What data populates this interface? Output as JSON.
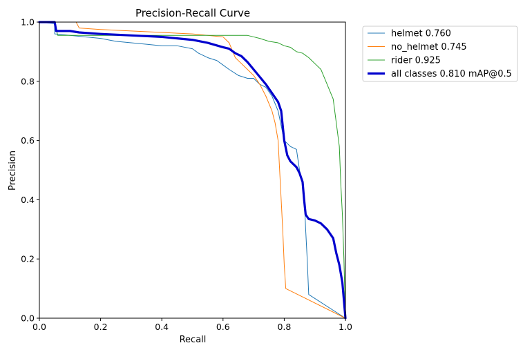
{
  "chart_data": {
    "type": "line",
    "title": "Precision-Recall Curve",
    "xlabel": "Recall",
    "ylabel": "Precision",
    "xlim": [
      0,
      1
    ],
    "ylim": [
      0,
      1
    ],
    "x_ticks": [
      "0.0",
      "0.2",
      "0.4",
      "0.6",
      "0.8",
      "1.0"
    ],
    "y_ticks": [
      "0.0",
      "0.2",
      "0.4",
      "0.6",
      "0.8",
      "1.0"
    ],
    "grid": false,
    "legend_position": "outside-top-right",
    "series": [
      {
        "name": "helmet 0.760",
        "color": "#1f77b4",
        "width": 1,
        "points": [
          [
            0,
            1.0
          ],
          [
            0.05,
            0.995
          ],
          [
            0.05,
            0.96
          ],
          [
            0.1,
            0.955
          ],
          [
            0.15,
            0.95
          ],
          [
            0.2,
            0.945
          ],
          [
            0.25,
            0.935
          ],
          [
            0.3,
            0.93
          ],
          [
            0.35,
            0.925
          ],
          [
            0.4,
            0.92
          ],
          [
            0.45,
            0.92
          ],
          [
            0.5,
            0.91
          ],
          [
            0.52,
            0.895
          ],
          [
            0.55,
            0.88
          ],
          [
            0.58,
            0.87
          ],
          [
            0.6,
            0.855
          ],
          [
            0.62,
            0.84
          ],
          [
            0.65,
            0.82
          ],
          [
            0.68,
            0.81
          ],
          [
            0.7,
            0.81
          ],
          [
            0.72,
            0.79
          ],
          [
            0.74,
            0.78
          ],
          [
            0.76,
            0.75
          ],
          [
            0.78,
            0.7
          ],
          [
            0.79,
            0.65
          ],
          [
            0.8,
            0.6
          ],
          [
            0.82,
            0.58
          ],
          [
            0.84,
            0.57
          ],
          [
            0.85,
            0.5
          ],
          [
            0.86,
            0.45
          ],
          [
            0.865,
            0.42
          ],
          [
            0.87,
            0.3
          ],
          [
            0.875,
            0.2
          ],
          [
            0.88,
            0.08
          ],
          [
            1.0,
            0.0
          ]
        ]
      },
      {
        "name": "no_helmet 0.745",
        "color": "#ff7f0e",
        "width": 1,
        "points": [
          [
            0,
            1.0
          ],
          [
            0.12,
            1.0
          ],
          [
            0.13,
            0.98
          ],
          [
            0.2,
            0.975
          ],
          [
            0.3,
            0.97
          ],
          [
            0.4,
            0.965
          ],
          [
            0.5,
            0.96
          ],
          [
            0.55,
            0.955
          ],
          [
            0.6,
            0.95
          ],
          [
            0.62,
            0.93
          ],
          [
            0.64,
            0.88
          ],
          [
            0.66,
            0.86
          ],
          [
            0.68,
            0.84
          ],
          [
            0.7,
            0.82
          ],
          [
            0.72,
            0.79
          ],
          [
            0.74,
            0.75
          ],
          [
            0.76,
            0.7
          ],
          [
            0.77,
            0.66
          ],
          [
            0.78,
            0.6
          ],
          [
            0.785,
            0.5
          ],
          [
            0.79,
            0.4
          ],
          [
            0.795,
            0.3
          ],
          [
            0.8,
            0.18
          ],
          [
            0.805,
            0.1
          ],
          [
            1.0,
            0.0
          ]
        ]
      },
      {
        "name": "rider 0.925",
        "color": "#2ca02c",
        "width": 1,
        "points": [
          [
            0,
            1.0
          ],
          [
            0.05,
            1.0
          ],
          [
            0.06,
            0.955
          ],
          [
            0.1,
            0.955
          ],
          [
            0.2,
            0.955
          ],
          [
            0.3,
            0.955
          ],
          [
            0.4,
            0.955
          ],
          [
            0.5,
            0.955
          ],
          [
            0.6,
            0.955
          ],
          [
            0.68,
            0.955
          ],
          [
            0.7,
            0.95
          ],
          [
            0.72,
            0.945
          ],
          [
            0.75,
            0.935
          ],
          [
            0.78,
            0.93
          ],
          [
            0.8,
            0.92
          ],
          [
            0.82,
            0.915
          ],
          [
            0.84,
            0.9
          ],
          [
            0.86,
            0.895
          ],
          [
            0.88,
            0.88
          ],
          [
            0.9,
            0.86
          ],
          [
            0.92,
            0.84
          ],
          [
            0.94,
            0.79
          ],
          [
            0.96,
            0.74
          ],
          [
            0.97,
            0.66
          ],
          [
            0.98,
            0.58
          ],
          [
            0.985,
            0.45
          ],
          [
            0.99,
            0.35
          ],
          [
            0.995,
            0.2
          ],
          [
            1.0,
            0.0
          ]
        ]
      },
      {
        "name": "all classes 0.810 mAP@0.5",
        "color": "#0000cd",
        "width": 3.2,
        "points": [
          [
            0,
            1.0
          ],
          [
            0.05,
            1.0
          ],
          [
            0.055,
            0.97
          ],
          [
            0.1,
            0.97
          ],
          [
            0.13,
            0.965
          ],
          [
            0.2,
            0.96
          ],
          [
            0.3,
            0.955
          ],
          [
            0.4,
            0.95
          ],
          [
            0.5,
            0.94
          ],
          [
            0.55,
            0.93
          ],
          [
            0.6,
            0.915
          ],
          [
            0.62,
            0.91
          ],
          [
            0.64,
            0.895
          ],
          [
            0.66,
            0.885
          ],
          [
            0.68,
            0.865
          ],
          [
            0.7,
            0.84
          ],
          [
            0.72,
            0.815
          ],
          [
            0.74,
            0.79
          ],
          [
            0.76,
            0.76
          ],
          [
            0.78,
            0.73
          ],
          [
            0.79,
            0.7
          ],
          [
            0.8,
            0.6
          ],
          [
            0.81,
            0.55
          ],
          [
            0.82,
            0.53
          ],
          [
            0.84,
            0.51
          ],
          [
            0.85,
            0.49
          ],
          [
            0.86,
            0.46
          ],
          [
            0.865,
            0.4
          ],
          [
            0.87,
            0.35
          ],
          [
            0.88,
            0.335
          ],
          [
            0.9,
            0.33
          ],
          [
            0.92,
            0.32
          ],
          [
            0.94,
            0.3
          ],
          [
            0.96,
            0.27
          ],
          [
            0.97,
            0.22
          ],
          [
            0.98,
            0.18
          ],
          [
            0.99,
            0.12
          ],
          [
            0.995,
            0.06
          ],
          [
            1.0,
            0.0
          ]
        ]
      }
    ]
  }
}
